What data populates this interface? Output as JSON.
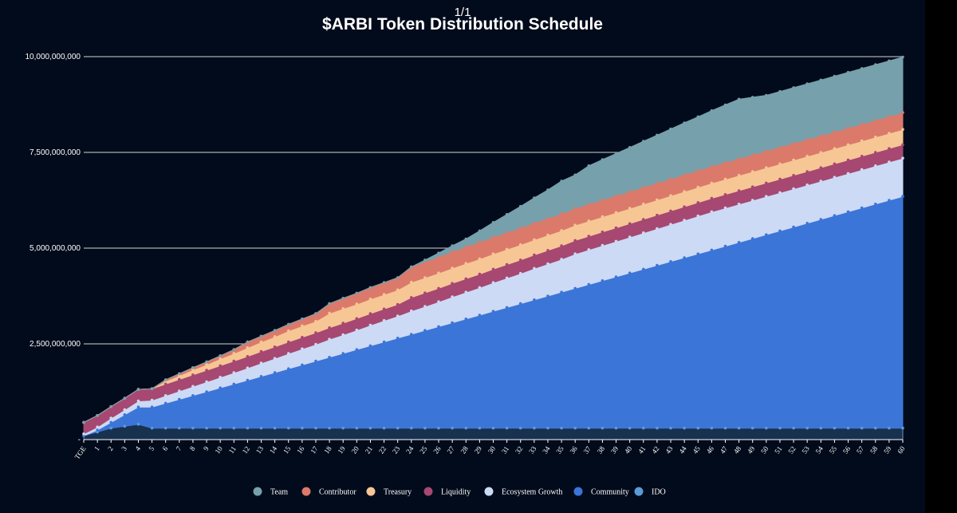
{
  "page_counter": "1/1",
  "chart_data": {
    "type": "area",
    "title": "$ARBI Token Distribution Schedule",
    "stacked": true,
    "xlabel": "",
    "ylabel": "",
    "ylim": [
      0,
      10000000000
    ],
    "y_ticks": [
      "-",
      "2,500,000,000",
      "5,000,000,000",
      "7,500,000,000",
      "10,000,000,000"
    ],
    "grid": true,
    "legend_position": "bottom",
    "categories": [
      "TGE",
      "1",
      "2",
      "3",
      "4",
      "5",
      "6",
      "7",
      "8",
      "9",
      "10",
      "11",
      "12",
      "13",
      "14",
      "15",
      "16",
      "17",
      "18",
      "19",
      "20",
      "21",
      "22",
      "23",
      "24",
      "25",
      "26",
      "27",
      "28",
      "29",
      "30",
      "31",
      "32",
      "33",
      "34",
      "35",
      "36",
      "37",
      "38",
      "39",
      "40",
      "41",
      "42",
      "43",
      "44",
      "45",
      "46",
      "47",
      "48",
      "49",
      "50",
      "51",
      "52",
      "53",
      "54",
      "55",
      "56",
      "57",
      "58",
      "59",
      "60"
    ],
    "series": [
      {
        "name": "IDO",
        "color": "#5b9ad5",
        "values": [
          100000000,
          200000000,
          300000000,
          350000000,
          400000000,
          300000000,
          300000000,
          300000000,
          300000000,
          300000000,
          300000000,
          300000000,
          300000000,
          300000000,
          300000000,
          300000000,
          300000000,
          300000000,
          300000000,
          300000000,
          300000000,
          300000000,
          300000000,
          300000000,
          300000000,
          300000000,
          300000000,
          300000000,
          300000000,
          300000000,
          300000000,
          300000000,
          300000000,
          300000000,
          300000000,
          300000000,
          300000000,
          300000000,
          300000000,
          300000000,
          300000000,
          300000000,
          300000000,
          300000000,
          300000000,
          300000000,
          300000000,
          300000000,
          300000000,
          300000000,
          300000000,
          300000000,
          300000000,
          300000000,
          300000000,
          300000000,
          300000000,
          300000000,
          300000000,
          300000000,
          300000000
        ]
      },
      {
        "name": "Community",
        "color": "#3c75d8",
        "values": [
          0,
          50000000,
          150000000,
          300000000,
          450000000,
          550000000,
          650000000,
          750000000,
          850000000,
          950000000,
          1050000000,
          1150000000,
          1250000000,
          1350000000,
          1450000000,
          1550000000,
          1650000000,
          1750000000,
          1850000000,
          1950000000,
          2050000000,
          2150000000,
          2250000000,
          2350000000,
          2450000000,
          2550000000,
          2650000000,
          2750000000,
          2850000000,
          2950000000,
          3050000000,
          3150000000,
          3250000000,
          3350000000,
          3450000000,
          3550000000,
          3650000000,
          3750000000,
          3850000000,
          3950000000,
          4050000000,
          4150000000,
          4250000000,
          4350000000,
          4450000000,
          4550000000,
          4650000000,
          4750000000,
          4850000000,
          4950000000,
          5050000000,
          5150000000,
          5250000000,
          5350000000,
          5450000000,
          5550000000,
          5650000000,
          5750000000,
          5850000000,
          5950000000,
          6050000000
        ]
      },
      {
        "name": "Ecosystem Growth",
        "color": "#ccdaf5",
        "values": [
          50000000,
          80000000,
          110000000,
          130000000,
          160000000,
          180000000,
          200000000,
          220000000,
          240000000,
          260000000,
          280000000,
          300000000,
          320000000,
          350000000,
          370000000,
          400000000,
          420000000,
          440000000,
          470000000,
          490000000,
          510000000,
          540000000,
          560000000,
          580000000,
          610000000,
          630000000,
          650000000,
          680000000,
          700000000,
          720000000,
          750000000,
          770000000,
          790000000,
          820000000,
          840000000,
          860000000,
          900000000,
          910000000,
          920000000,
          930000000,
          940000000,
          950000000,
          960000000,
          970000000,
          980000000,
          990000000,
          1000000000,
          1000000000,
          1000000000,
          1000000000,
          1000000000,
          1000000000,
          1000000000,
          1000000000,
          1000000000,
          1000000000,
          1000000000,
          1000000000,
          1000000000,
          1000000000,
          1000000000
        ]
      },
      {
        "name": "Liquidity",
        "color": "#a64872",
        "values": [
          300000000,
          300000000,
          300000000,
          300000000,
          300000000,
          300000000,
          300000000,
          300000000,
          300000000,
          300000000,
          300000000,
          300000000,
          300000000,
          300000000,
          300000000,
          300000000,
          300000000,
          300000000,
          300000000,
          300000000,
          300000000,
          300000000,
          300000000,
          300000000,
          350000000,
          350000000,
          350000000,
          350000000,
          350000000,
          350000000,
          350000000,
          350000000,
          350000000,
          350000000,
          350000000,
          350000000,
          350000000,
          350000000,
          350000000,
          350000000,
          350000000,
          350000000,
          350000000,
          350000000,
          350000000,
          350000000,
          350000000,
          350000000,
          350000000,
          350000000,
          350000000,
          350000000,
          350000000,
          350000000,
          350000000,
          350000000,
          350000000,
          350000000,
          350000000,
          350000000,
          350000000
        ]
      },
      {
        "name": "Treasury",
        "color": "#f7c695",
        "values": [
          0,
          0,
          0,
          0,
          0,
          0,
          80000000,
          100000000,
          130000000,
          150000000,
          180000000,
          200000000,
          230000000,
          250000000,
          270000000,
          290000000,
          300000000,
          300000000,
          380000000,
          380000000,
          380000000,
          380000000,
          380000000,
          380000000,
          400000000,
          400000000,
          400000000,
          400000000,
          400000000,
          400000000,
          400000000,
          400000000,
          400000000,
          400000000,
          400000000,
          400000000,
          400000000,
          400000000,
          400000000,
          400000000,
          400000000,
          400000000,
          400000000,
          400000000,
          400000000,
          400000000,
          400000000,
          400000000,
          400000000,
          400000000,
          400000000,
          400000000,
          400000000,
          400000000,
          400000000,
          400000000,
          400000000,
          400000000,
          400000000,
          400000000,
          400000000
        ]
      },
      {
        "name": "Contributor",
        "color": "#db7a6a",
        "values": [
          0,
          0,
          0,
          0,
          0,
          0,
          30000000,
          50000000,
          60000000,
          70000000,
          80000000,
          100000000,
          150000000,
          150000000,
          160000000,
          170000000,
          180000000,
          200000000,
          250000000,
          270000000,
          280000000,
          300000000,
          310000000,
          320000000,
          400000000,
          410000000,
          420000000,
          430000000,
          440000000,
          440000000,
          440000000,
          440000000,
          440000000,
          440000000,
          440000000,
          440000000,
          440000000,
          440000000,
          440000000,
          440000000,
          440000000,
          440000000,
          440000000,
          440000000,
          440000000,
          440000000,
          440000000,
          440000000,
          440000000,
          440000000,
          440000000,
          440000000,
          440000000,
          440000000,
          440000000,
          440000000,
          440000000,
          440000000,
          440000000,
          440000000,
          440000000
        ]
      },
      {
        "name": "Team",
        "color": "#76a0ac",
        "values": [
          0,
          0,
          0,
          0,
          0,
          0,
          0,
          0,
          0,
          0,
          0,
          0,
          0,
          0,
          0,
          0,
          0,
          0,
          0,
          0,
          0,
          0,
          0,
          0,
          0,
          50000000,
          100000000,
          150000000,
          200000000,
          290000000,
          380000000,
          470000000,
          560000000,
          650000000,
          740000000,
          850000000,
          870000000,
          1000000000,
          1050000000,
          1100000000,
          1150000000,
          1200000000,
          1250000000,
          1300000000,
          1350000000,
          1400000000,
          1450000000,
          1500000000,
          1550000000,
          1500000000,
          1450000000,
          1450000000,
          1450000000,
          1450000000,
          1450000000,
          1450000000,
          1450000000,
          1450000000,
          1450000000,
          1450000000,
          1450000000
        ]
      }
    ],
    "legend_order": [
      "Team",
      "Contributor",
      "Treasury",
      "Liquidity",
      "Ecosystem Growth",
      "Community",
      "IDO"
    ]
  }
}
